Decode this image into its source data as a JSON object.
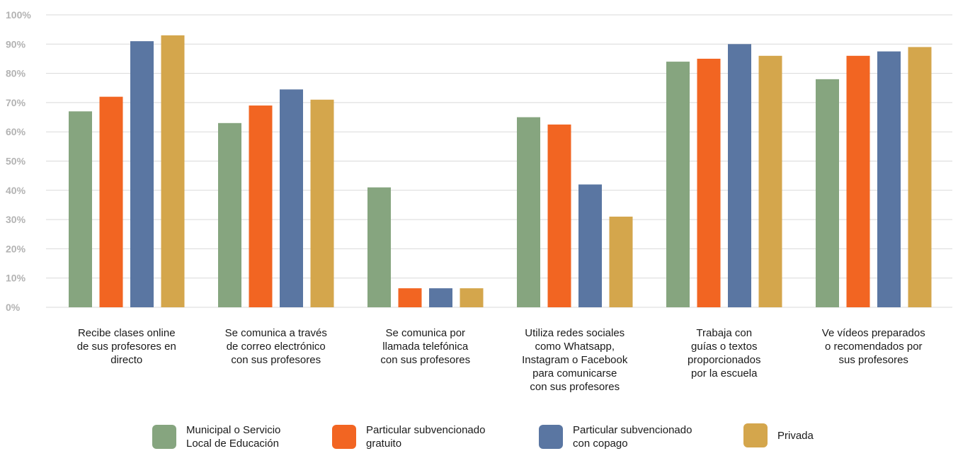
{
  "chart_data": {
    "type": "bar",
    "categories": [
      "Recibe clases online\nde sus profesores en\ndirecto",
      "Se comunica a través\nde correo electrónico\ncon sus profesores",
      "Se comunica por\nllamada telefónica\ncon sus profesores",
      "Utiliza redes sociales\ncomo Whatsapp,\nInstagram o Facebook\npara comunicarse\ncon sus profesores",
      "Trabaja con\nguías o textos\nproporcionados\npor la escuela",
      "Ve vídeos preparados\no recomendados por\nsus profesores"
    ],
    "series": [
      {
        "name": "Municipal o Servicio\nLocal de Educación",
        "color": "#86a57f",
        "values": [
          67,
          63,
          41,
          65,
          84,
          78
        ]
      },
      {
        "name": "Particular subvencionado\ngratuito",
        "color": "#f26522",
        "values": [
          72,
          69,
          6.5,
          62.5,
          85,
          86
        ]
      },
      {
        "name": "Particular subvencionado\ncon copago",
        "color": "#5a76a2",
        "values": [
          91,
          74.5,
          6.5,
          42,
          90,
          87.5
        ]
      },
      {
        "name": "Privada",
        "color": "#d4a64c",
        "values": [
          93,
          71,
          6.5,
          31,
          86,
          89
        ]
      }
    ],
    "y_ticks": [
      "0%",
      "10%",
      "20%",
      "30%",
      "40%",
      "50%",
      "60%",
      "70%",
      "80%",
      "90%",
      "100%"
    ],
    "ylim": [
      0,
      100
    ],
    "grid": true,
    "legend_position": "bottom"
  }
}
